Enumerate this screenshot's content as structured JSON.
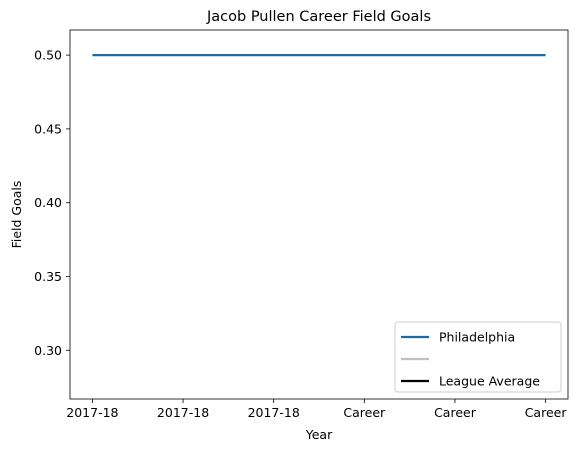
{
  "chart_data": {
    "type": "line",
    "title": "Jacob Pullen Career Field Goals",
    "xlabel": "Year",
    "ylabel": "Field Goals",
    "categories": [
      "2017-18",
      "2017-18",
      "2017-18",
      "Career",
      "Career",
      "Career"
    ],
    "yticks": [
      "0.30",
      "0.35",
      "0.40",
      "0.45",
      "0.50"
    ],
    "ytick_values": [
      0.3,
      0.35,
      0.4,
      0.45,
      0.5
    ],
    "ylim": [
      0.267,
      0.517
    ],
    "grid": false,
    "legend_position": "lower-right",
    "series": [
      {
        "name": "Philadelphia",
        "color": "#1f6aa5",
        "values": [
          0.5,
          0.5,
          0.5,
          0.5,
          0.5,
          0.5
        ]
      }
    ],
    "legend": [
      {
        "label": "Philadelphia",
        "color": "#1f6aa5"
      },
      {
        "label": "",
        "color": "#c0c0c0"
      },
      {
        "label": "League Average",
        "color": "#000000"
      }
    ]
  }
}
